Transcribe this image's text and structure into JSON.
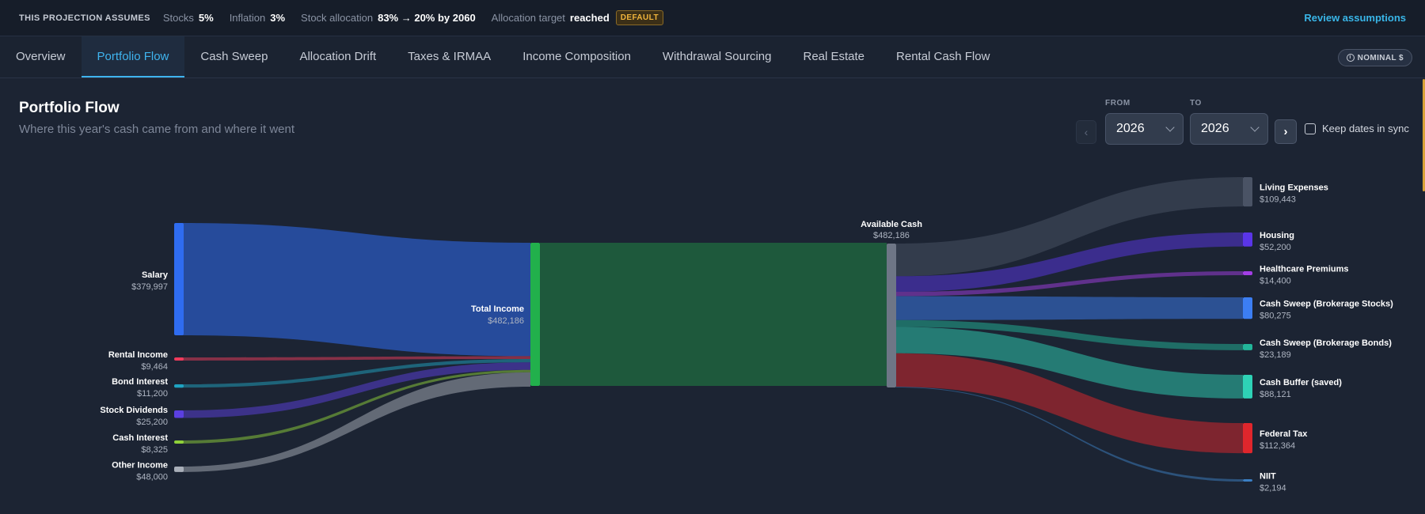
{
  "assumptions": {
    "heading": "THIS PROJECTION ASSUMES",
    "stocks_label": "Stocks",
    "stocks_value": "5%",
    "inflation_label": "Inflation",
    "inflation_value": "3%",
    "allocation_label": "Stock allocation",
    "allocation_value": "83% → 20% by 2060",
    "target_label": "Allocation target",
    "target_value": "reached",
    "target_badge": "DEFAULT",
    "review_link": "Review assumptions"
  },
  "tabs": [
    {
      "label": "Overview",
      "active": false
    },
    {
      "label": "Portfolio Flow",
      "active": true
    },
    {
      "label": "Cash Sweep",
      "active": false
    },
    {
      "label": "Allocation Drift",
      "active": false
    },
    {
      "label": "Taxes & IRMAA",
      "active": false
    },
    {
      "label": "Income Composition",
      "active": false
    },
    {
      "label": "Withdrawal Sourcing",
      "active": false
    },
    {
      "label": "Real Estate",
      "active": false
    },
    {
      "label": "Rental Cash Flow",
      "active": false
    }
  ],
  "nominal_badge": "NOMINAL $",
  "page": {
    "title": "Portfolio Flow",
    "subtitle": "Where this year's cash came from and where it went"
  },
  "range": {
    "prev_glyph": "‹",
    "next_glyph": "›",
    "from_label": "FROM",
    "from_value": "2026",
    "to_label": "TO",
    "to_value": "2026",
    "sync_label": "Keep dates in sync",
    "sync_checked": false
  },
  "chart_data": {
    "type": "sankey",
    "sources": [
      {
        "name": "Salary",
        "display": "$379,997",
        "value": 379997,
        "color": "#2f6cf0"
      },
      {
        "name": "Rental Income",
        "display": "$9,464",
        "value": 9464,
        "color": "#ef3b5c"
      },
      {
        "name": "Bond Interest",
        "display": "$11,200",
        "value": 11200,
        "color": "#1fa3c2"
      },
      {
        "name": "Stock Dividends",
        "display": "$25,200",
        "value": 25200,
        "color": "#5b3fe0"
      },
      {
        "name": "Cash Interest",
        "display": "$8,325",
        "value": 8325,
        "color": "#8fd13a"
      },
      {
        "name": "Other Income",
        "display": "$48,000",
        "value": 48000,
        "color": "#a9afb9"
      }
    ],
    "total_income": {
      "name": "Total Income",
      "display": "$482,186",
      "value": 482186,
      "color": "#22b04c"
    },
    "available_cash": {
      "name": "Available Cash",
      "display": "$482,186",
      "value": 482186,
      "color": "#6e7686"
    },
    "destinations": [
      {
        "name": "Living Expenses",
        "display": "$109,443",
        "value": 109443,
        "color": "#4a5365"
      },
      {
        "name": "Housing",
        "display": "$52,200",
        "value": 52200,
        "color": "#5a35e8"
      },
      {
        "name": "Healthcare Premiums",
        "display": "$14,400",
        "value": 14400,
        "color": "#a33ee6"
      },
      {
        "name": "Cash Sweep (Brokerage Stocks)",
        "display": "$80,275",
        "value": 80275,
        "color": "#3c7ef3"
      },
      {
        "name": "Cash Sweep (Brokerage Bonds)",
        "display": "$23,189",
        "value": 23189,
        "color": "#22b69a"
      },
      {
        "name": "Cash Buffer (saved)",
        "display": "$88,121",
        "value": 88121,
        "color": "#2ed2b6"
      },
      {
        "name": "Federal Tax",
        "display": "$112,364",
        "value": 112364,
        "color": "#e0262c"
      },
      {
        "name": "NIIT",
        "display": "$2,194",
        "value": 2194,
        "color": "#3b7fc4"
      }
    ]
  }
}
